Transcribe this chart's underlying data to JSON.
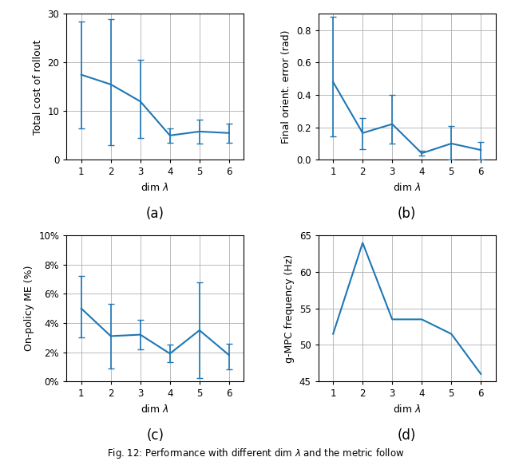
{
  "x": [
    1,
    2,
    3,
    4,
    5,
    6
  ],
  "subplot_a": {
    "ylabel": "Total cost of rollout",
    "xlabel": "dim $\\lambda$",
    "caption": "(a)",
    "y": [
      17.5,
      15.5,
      12.0,
      5.0,
      5.8,
      5.5
    ],
    "yerr_upper": [
      11.0,
      13.5,
      8.5,
      1.5,
      2.5,
      2.0
    ],
    "yerr_lower": [
      11.0,
      12.5,
      7.5,
      1.5,
      2.5,
      2.0
    ],
    "ylim": [
      0,
      30
    ],
    "yticks": [
      0,
      10,
      20,
      30
    ]
  },
  "subplot_b": {
    "ylabel": "Final orient. error (rad)",
    "xlabel": "dim $\\lambda$",
    "caption": "(b)",
    "y": [
      0.48,
      0.165,
      0.22,
      0.04,
      0.1,
      0.06
    ],
    "yerr_upper": [
      0.405,
      0.09,
      0.18,
      0.015,
      0.11,
      0.05
    ],
    "yerr_lower": [
      0.335,
      0.1,
      0.12,
      0.015,
      0.1,
      0.06
    ],
    "ylim": [
      0.0,
      0.9
    ],
    "yticks": [
      0.0,
      0.2,
      0.4,
      0.6,
      0.8
    ]
  },
  "subplot_c": {
    "ylabel": "On-policy ME (%)",
    "xlabel": "dim $\\lambda$",
    "caption": "(c)",
    "y": [
      0.05,
      0.031,
      0.032,
      0.019,
      0.035,
      0.018
    ],
    "yerr_upper": [
      0.022,
      0.022,
      0.01,
      0.006,
      0.033,
      0.008
    ],
    "yerr_lower": [
      0.02,
      0.022,
      0.01,
      0.006,
      0.033,
      0.01
    ],
    "ylim": [
      0.0,
      0.1
    ],
    "yticks": [
      0.0,
      0.02,
      0.04,
      0.06,
      0.08,
      0.1
    ]
  },
  "subplot_d": {
    "ylabel": "g-MPC frequency (Hz)",
    "xlabel": "dim $\\lambda$",
    "caption": "(d)",
    "y": [
      51.5,
      64.0,
      53.5,
      53.5,
      51.5,
      46.0
    ],
    "ylim": [
      45,
      65
    ],
    "yticks": [
      45,
      50,
      55,
      60,
      65
    ]
  },
  "line_color": "#1f77b4",
  "grid_color": "#b0b0b0",
  "cap_size": 3,
  "line_width": 1.5,
  "figsize": [
    6.4,
    5.83
  ],
  "dpi": 100
}
